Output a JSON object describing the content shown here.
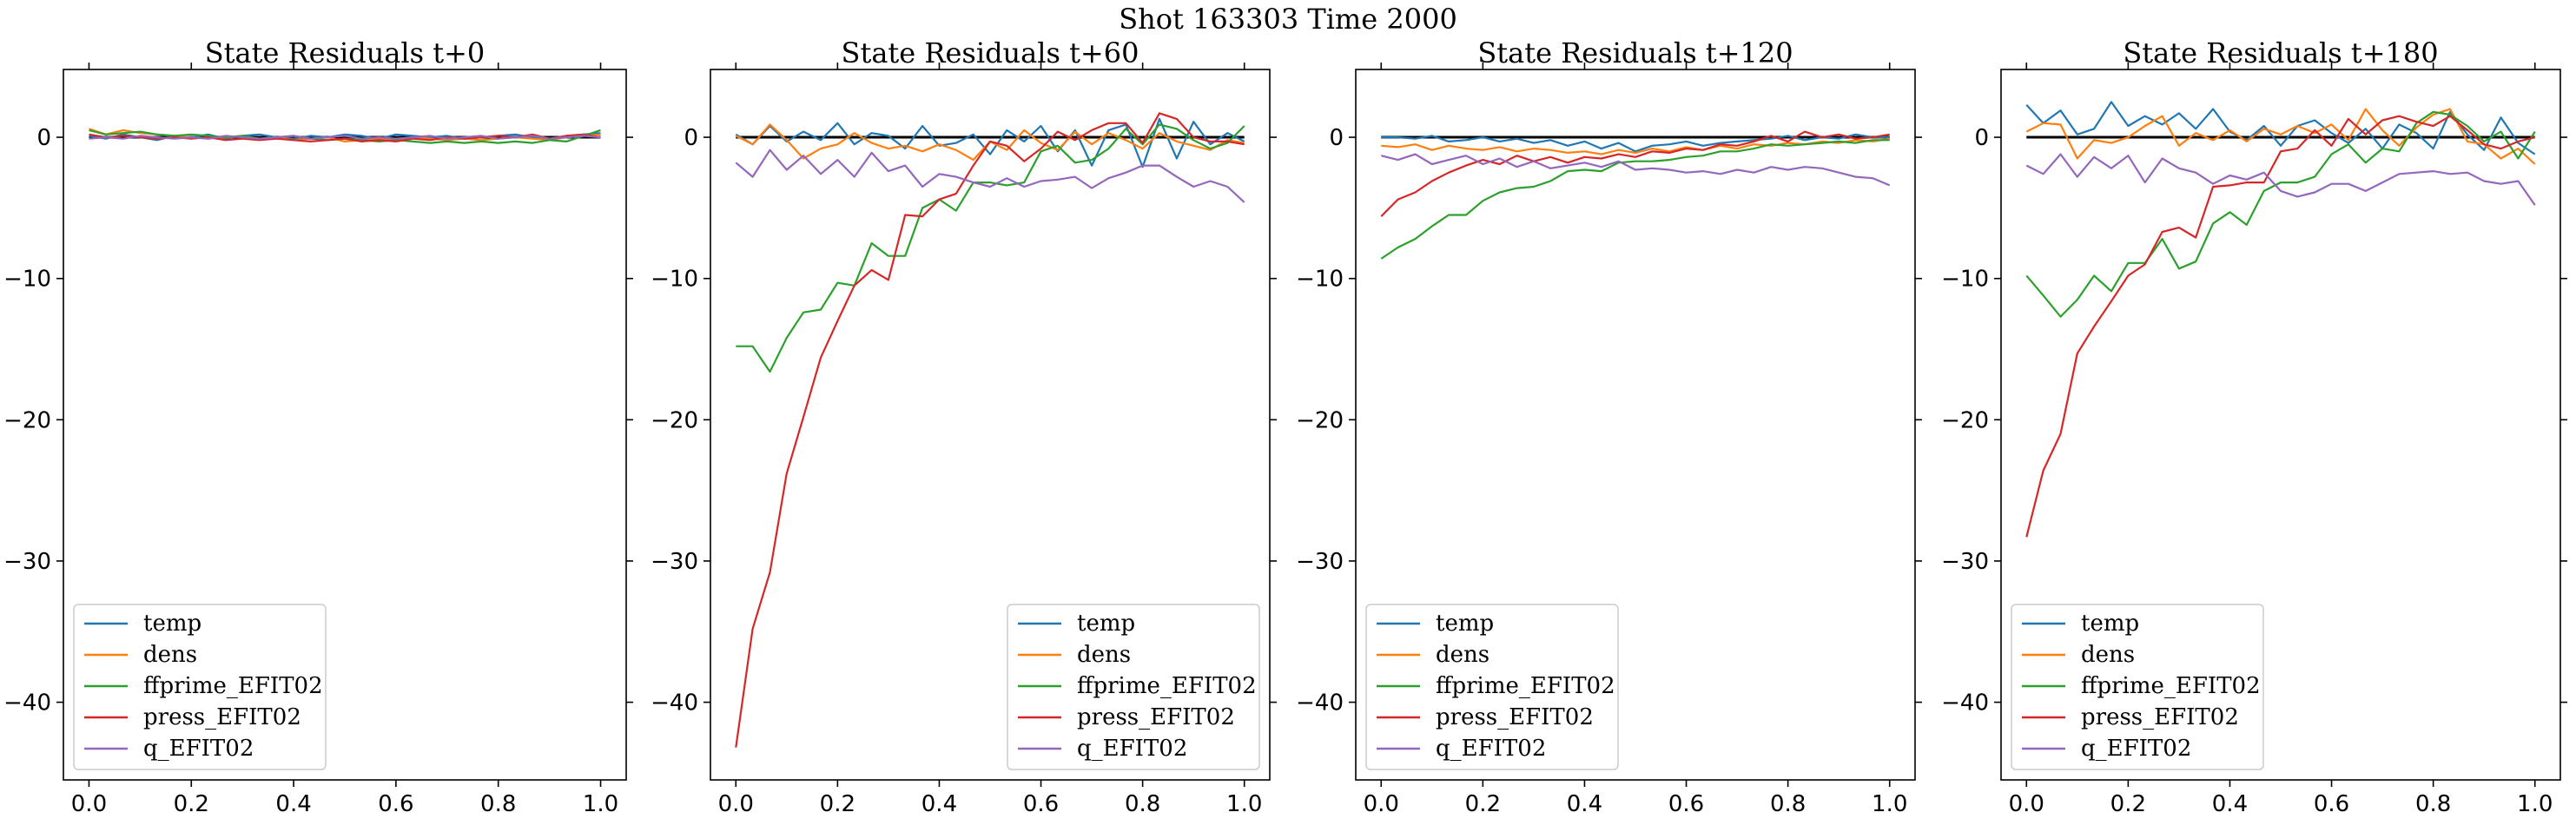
{
  "figure": {
    "suptitle": "Shot 163303   Time 2000"
  },
  "colors": {
    "temp": "#1f77b4",
    "dens": "#ff7f0e",
    "ffprime_EFIT02": "#2ca02c",
    "press_EFIT02": "#d62728",
    "q_EFIT02": "#9467bd",
    "zero_line": "#000000"
  },
  "chart_data": [
    {
      "type": "line",
      "title": "State Residuals t+0",
      "xlim": [
        -0.05,
        1.05
      ],
      "ylim": [
        -45.5,
        4.8
      ],
      "xticks": [
        "0.0",
        "0.2",
        "0.4",
        "0.6",
        "0.8",
        "1.0"
      ],
      "yticks": [
        "0",
        "−10",
        "−20",
        "−30",
        "−40"
      ],
      "legend_position": "lower left",
      "x": [
        0.0,
        0.033,
        0.067,
        0.1,
        0.133,
        0.167,
        0.2,
        0.233,
        0.267,
        0.3,
        0.333,
        0.367,
        0.4,
        0.433,
        0.467,
        0.5,
        0.533,
        0.567,
        0.6,
        0.633,
        0.667,
        0.7,
        0.733,
        0.767,
        0.8,
        0.833,
        0.867,
        0.9,
        0.933,
        0.967,
        1.0
      ],
      "series": [
        {
          "name": "temp",
          "values": [
            0.1,
            -0.1,
            0.2,
            0.0,
            -0.2,
            0.1,
            0.0,
            0.2,
            -0.1,
            0.1,
            0.2,
            0.0,
            -0.1,
            0.1,
            0.0,
            0.2,
            0.1,
            -0.1,
            0.2,
            0.1,
            0.0,
            0.1,
            -0.1,
            0.0,
            0.1,
            0.2,
            0.0,
            -0.1,
            0.1,
            0.2,
            0.3
          ]
        },
        {
          "name": "dens",
          "values": [
            0.6,
            0.2,
            0.5,
            0.3,
            0.2,
            0.1,
            0.0,
            -0.1,
            0.0,
            0.1,
            -0.1,
            0.0,
            -0.2,
            -0.1,
            0.0,
            -0.3,
            -0.2,
            -0.1,
            -0.2,
            0.0,
            -0.1,
            -0.2,
            -0.1,
            -0.2,
            -0.1,
            0.0,
            -0.1,
            -0.2,
            0.0,
            0.1,
            0.2
          ]
        },
        {
          "name": "ffprime_EFIT02",
          "values": [
            0.5,
            0.2,
            0.3,
            0.4,
            0.2,
            0.1,
            0.2,
            0.1,
            0.0,
            0.1,
            -0.1,
            0.0,
            0.1,
            -0.1,
            -0.2,
            -0.1,
            -0.2,
            -0.3,
            -0.2,
            -0.3,
            -0.4,
            -0.3,
            -0.4,
            -0.3,
            -0.4,
            -0.3,
            -0.4,
            -0.2,
            -0.3,
            0.1,
            0.5
          ]
        },
        {
          "name": "press_EFIT02",
          "values": [
            0.2,
            0.0,
            0.1,
            0.0,
            -0.1,
            0.0,
            -0.1,
            0.0,
            -0.2,
            -0.1,
            -0.2,
            -0.1,
            -0.2,
            -0.3,
            -0.2,
            -0.1,
            -0.3,
            -0.2,
            -0.3,
            -0.1,
            -0.2,
            0.0,
            -0.1,
            0.0,
            0.1,
            0.0,
            0.2,
            -0.1,
            0.1,
            0.2,
            0.0
          ]
        },
        {
          "name": "q_EFIT02",
          "values": [
            -0.1,
            0.0,
            -0.1,
            0.1,
            0.0,
            -0.1,
            0.0,
            -0.1,
            0.1,
            0.0,
            -0.1,
            0.0,
            0.1,
            -0.1,
            0.0,
            0.1,
            -0.1,
            0.0,
            -0.1,
            0.0,
            0.1,
            -0.1,
            0.0,
            0.1,
            -0.1,
            0.0,
            0.1,
            -0.1,
            0.0,
            0.1,
            0.0
          ]
        }
      ]
    },
    {
      "type": "line",
      "title": "State Residuals t+60",
      "xlim": [
        -0.05,
        1.05
      ],
      "ylim": [
        -45.5,
        4.8
      ],
      "xticks": [
        "0.0",
        "0.2",
        "0.4",
        "0.6",
        "0.8",
        "1.0"
      ],
      "yticks": [
        "0",
        "−10",
        "−20",
        "−30",
        "−40"
      ],
      "legend_position": "lower right",
      "x": [
        0.0,
        0.033,
        0.067,
        0.1,
        0.133,
        0.167,
        0.2,
        0.233,
        0.267,
        0.3,
        0.333,
        0.367,
        0.4,
        0.433,
        0.467,
        0.5,
        0.533,
        0.567,
        0.6,
        0.633,
        0.667,
        0.7,
        0.733,
        0.767,
        0.8,
        0.833,
        0.867,
        0.9,
        0.933,
        0.967,
        1.0
      ],
      "series": [
        {
          "name": "temp",
          "values": [
            0.2,
            -0.5,
            0.8,
            -0.3,
            0.4,
            -0.2,
            1.0,
            -0.5,
            0.3,
            0.1,
            -0.8,
            0.8,
            -0.6,
            -0.4,
            0.2,
            -1.2,
            0.5,
            -0.3,
            0.8,
            -1.0,
            0.5,
            -2.0,
            0.5,
            0.9,
            -2.1,
            1.3,
            -1.5,
            1.1,
            -0.5,
            0.3,
            -0.3
          ]
        },
        {
          "name": "dens",
          "values": [
            0.1,
            -0.5,
            0.9,
            -0.2,
            -1.5,
            -0.8,
            -0.5,
            0.3,
            -0.4,
            -0.8,
            -0.6,
            -1.0,
            -0.5,
            -0.9,
            -1.6,
            -0.3,
            -0.9,
            0.5,
            -0.4,
            -0.9,
            0.4,
            -0.5,
            0.3,
            -0.2,
            -0.8,
            0.3,
            -0.3,
            -0.6,
            -0.9,
            -0.2,
            -0.4
          ]
        },
        {
          "name": "ffprime_EFIT02",
          "values": [
            -14.8,
            -14.8,
            -16.6,
            -14.2,
            -12.4,
            -12.2,
            -10.3,
            -10.5,
            -7.5,
            -8.4,
            -8.4,
            -5.0,
            -4.4,
            -5.2,
            -3.2,
            -3.2,
            -3.4,
            -3.2,
            -1.0,
            -0.6,
            -1.8,
            -1.6,
            -0.8,
            0.6,
            -0.5,
            0.9,
            0.6,
            -0.2,
            -0.8,
            -0.4,
            0.8
          ]
        },
        {
          "name": "press_EFIT02",
          "values": [
            -43.2,
            -34.8,
            -30.8,
            -23.8,
            -19.8,
            -15.6,
            -13.0,
            -10.5,
            -9.4,
            -10.1,
            -5.5,
            -5.6,
            -4.4,
            -4.0,
            -2.0,
            -0.3,
            -0.6,
            -1.7,
            -0.8,
            0.4,
            -0.2,
            0.5,
            1.0,
            1.0,
            -0.4,
            1.7,
            1.3,
            0.0,
            -0.3,
            -0.3,
            -0.5
          ]
        },
        {
          "name": "q_EFIT02",
          "values": [
            -1.8,
            -2.8,
            -0.9,
            -2.3,
            -1.3,
            -2.6,
            -1.6,
            -2.8,
            -1.1,
            -2.4,
            -2.0,
            -3.5,
            -2.6,
            -2.8,
            -3.2,
            -3.5,
            -2.9,
            -3.5,
            -3.1,
            -3.0,
            -2.8,
            -3.6,
            -2.9,
            -2.5,
            -2.0,
            -2.0,
            -2.8,
            -3.5,
            -3.1,
            -3.5,
            -4.6
          ]
        }
      ]
    },
    {
      "type": "line",
      "title": "State Residuals t+120",
      "xlim": [
        -0.05,
        1.05
      ],
      "ylim": [
        -45.5,
        4.8
      ],
      "xticks": [
        "0.0",
        "0.2",
        "0.4",
        "0.6",
        "0.8",
        "1.0"
      ],
      "yticks": [
        "0",
        "−10",
        "−20",
        "−30",
        "−40"
      ],
      "legend_position": "lower left",
      "x": [
        0.0,
        0.033,
        0.067,
        0.1,
        0.133,
        0.167,
        0.2,
        0.233,
        0.267,
        0.3,
        0.333,
        0.367,
        0.4,
        0.433,
        0.467,
        0.5,
        0.533,
        0.567,
        0.6,
        0.633,
        0.667,
        0.7,
        0.733,
        0.767,
        0.8,
        0.833,
        0.867,
        0.9,
        0.933,
        0.967,
        1.0
      ],
      "series": [
        {
          "name": "temp",
          "values": [
            0.0,
            0.0,
            -0.1,
            0.1,
            -0.3,
            -0.2,
            0.0,
            -0.3,
            -0.1,
            -0.4,
            -0.2,
            -0.6,
            -0.3,
            -0.8,
            -0.4,
            -1.0,
            -0.6,
            -0.5,
            -0.3,
            -0.6,
            -0.4,
            -0.3,
            -0.2,
            -0.1,
            0.1,
            -0.2,
            0.0,
            -0.1,
            0.2,
            0.0,
            0.0
          ]
        },
        {
          "name": "dens",
          "values": [
            -0.6,
            -0.7,
            -0.5,
            -0.9,
            -0.6,
            -0.8,
            -0.9,
            -0.7,
            -1.0,
            -0.8,
            -0.9,
            -1.1,
            -1.0,
            -1.2,
            -0.9,
            -1.1,
            -0.8,
            -1.0,
            -0.7,
            -0.9,
            -0.6,
            -0.8,
            -0.5,
            -0.6,
            -0.4,
            -0.5,
            -0.3,
            -0.4,
            -0.2,
            -0.3,
            -0.1
          ]
        },
        {
          "name": "ffprime_EFIT02",
          "values": [
            -8.6,
            -7.8,
            -7.2,
            -6.3,
            -5.5,
            -5.5,
            -4.5,
            -3.9,
            -3.6,
            -3.5,
            -3.1,
            -2.4,
            -2.3,
            -2.4,
            -1.8,
            -1.7,
            -1.7,
            -1.6,
            -1.4,
            -1.3,
            -1.0,
            -1.0,
            -0.8,
            -0.5,
            -0.6,
            -0.5,
            -0.4,
            -0.3,
            -0.4,
            -0.2,
            -0.2
          ]
        },
        {
          "name": "press_EFIT02",
          "values": [
            -5.6,
            -4.4,
            -3.9,
            -3.1,
            -2.5,
            -2.0,
            -1.6,
            -1.9,
            -1.3,
            -1.7,
            -1.4,
            -1.8,
            -1.4,
            -1.5,
            -1.2,
            -1.4,
            -1.0,
            -1.1,
            -0.8,
            -0.9,
            -0.5,
            -0.6,
            -0.3,
            0.1,
            -0.3,
            0.4,
            0.0,
            0.2,
            -0.1,
            0.0,
            0.2
          ]
        },
        {
          "name": "q_EFIT02",
          "values": [
            -1.3,
            -1.6,
            -1.2,
            -1.9,
            -1.6,
            -1.3,
            -1.9,
            -1.5,
            -2.1,
            -1.7,
            -2.2,
            -2.0,
            -1.8,
            -2.1,
            -1.7,
            -2.3,
            -2.2,
            -2.3,
            -2.5,
            -2.4,
            -2.6,
            -2.3,
            -2.5,
            -2.1,
            -2.3,
            -2.1,
            -2.2,
            -2.5,
            -2.8,
            -2.9,
            -3.4
          ]
        }
      ]
    },
    {
      "type": "line",
      "title": "State Residuals t+180",
      "xlim": [
        -0.05,
        1.05
      ],
      "ylim": [
        -45.5,
        4.8
      ],
      "xticks": [
        "0.0",
        "0.2",
        "0.4",
        "0.6",
        "0.8",
        "1.0"
      ],
      "yticks": [
        "0",
        "−10",
        "−20",
        "−30",
        "−40"
      ],
      "legend_position": "lower left",
      "x": [
        0.0,
        0.033,
        0.067,
        0.1,
        0.133,
        0.167,
        0.2,
        0.233,
        0.267,
        0.3,
        0.333,
        0.367,
        0.4,
        0.433,
        0.467,
        0.5,
        0.533,
        0.567,
        0.6,
        0.633,
        0.667,
        0.7,
        0.733,
        0.767,
        0.8,
        0.833,
        0.867,
        0.9,
        0.933,
        0.967,
        1.0
      ],
      "series": [
        {
          "name": "temp",
          "values": [
            2.3,
            1.0,
            1.9,
            0.2,
            0.6,
            2.5,
            0.8,
            1.5,
            0.9,
            1.7,
            0.6,
            2.0,
            0.4,
            -0.2,
            0.8,
            -0.6,
            0.8,
            1.2,
            0.3,
            -0.4,
            0.6,
            -0.8,
            0.9,
            0.3,
            -0.8,
            1.8,
            0.2,
            -0.9,
            1.4,
            -0.4,
            -1.2
          ]
        },
        {
          "name": "dens",
          "values": [
            0.4,
            1.0,
            0.9,
            -1.5,
            -0.2,
            -0.4,
            0.0,
            0.8,
            1.5,
            -0.6,
            0.3,
            -0.2,
            0.5,
            -0.3,
            0.6,
            0.2,
            0.8,
            0.3,
            0.9,
            -0.2,
            2.0,
            0.5,
            -0.6,
            0.7,
            1.6,
            2.0,
            -0.3,
            -0.5,
            -1.5,
            -0.8,
            -1.9
          ]
        },
        {
          "name": "ffprime_EFIT02",
          "values": [
            -9.8,
            -11.2,
            -12.7,
            -11.5,
            -9.8,
            -10.9,
            -8.9,
            -8.9,
            -7.2,
            -9.3,
            -8.8,
            -6.1,
            -5.3,
            -6.2,
            -3.8,
            -3.2,
            -3.2,
            -2.8,
            -1.2,
            -0.5,
            -1.8,
            -0.8,
            -1.0,
            1.0,
            1.8,
            1.6,
            0.8,
            -0.3,
            0.4,
            -1.5,
            0.4
          ]
        },
        {
          "name": "press_EFIT02",
          "values": [
            -28.3,
            -23.6,
            -21.0,
            -15.3,
            -13.4,
            -11.6,
            -9.8,
            -9.0,
            -6.7,
            -6.4,
            -7.1,
            -3.5,
            -3.4,
            -3.2,
            -3.2,
            -1.0,
            -0.8,
            0.5,
            -0.6,
            1.3,
            0.2,
            1.2,
            1.5,
            1.1,
            0.8,
            1.5,
            0.5,
            -0.5,
            -0.8,
            -0.3,
            0.0
          ]
        },
        {
          "name": "q_EFIT02",
          "values": [
            -2.0,
            -2.6,
            -1.2,
            -2.8,
            -1.4,
            -2.2,
            -1.3,
            -3.2,
            -1.5,
            -2.2,
            -2.5,
            -3.3,
            -2.7,
            -3.0,
            -2.5,
            -3.8,
            -4.2,
            -3.9,
            -3.3,
            -3.3,
            -3.8,
            -3.2,
            -2.6,
            -2.5,
            -2.4,
            -2.6,
            -2.5,
            -3.1,
            -3.3,
            -3.1,
            -4.8
          ]
        }
      ]
    }
  ]
}
